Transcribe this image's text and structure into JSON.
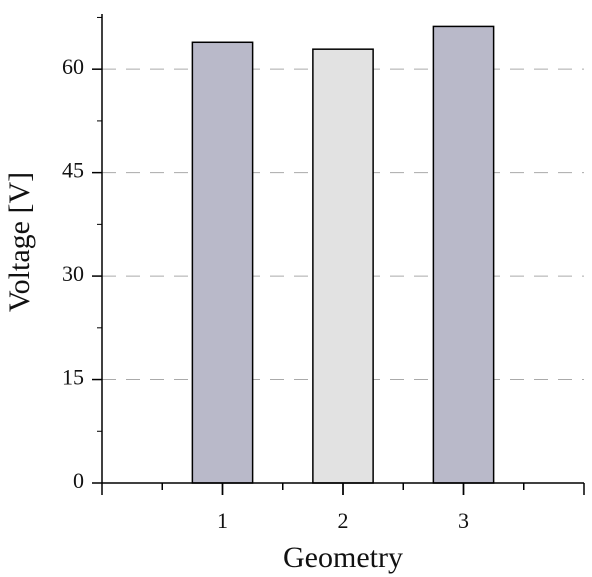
{
  "chart_data": {
    "type": "bar",
    "x": [
      1,
      2,
      3
    ],
    "values": [
      63.9,
      62.9,
      66.2
    ],
    "colors": [
      "#b9b9c9",
      "#e2e2e2",
      "#b9b9c9"
    ],
    "xlabel": "Geometry",
    "ylabel": "Voltage [V]",
    "xlim": [
      0,
      4
    ],
    "xticks": [
      1,
      2,
      3
    ],
    "ylim": [
      0,
      68
    ],
    "yticks": [
      0,
      15,
      30,
      45,
      60
    ],
    "grid": true
  }
}
